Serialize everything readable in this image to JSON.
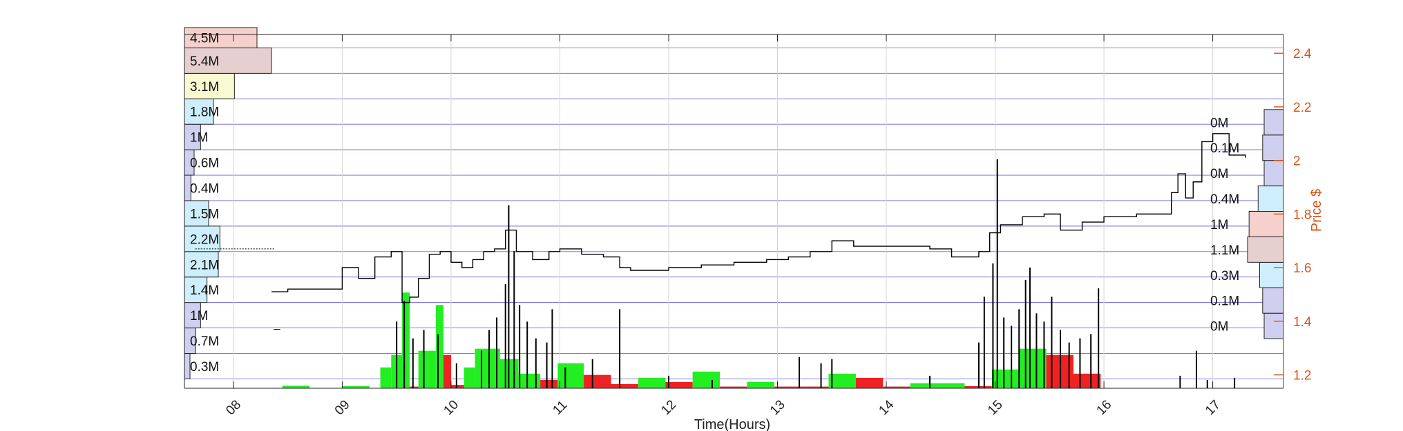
{
  "chart_data": {
    "type": "line",
    "title": "",
    "xlabel": "Time(Hours)",
    "ylabel": "Price $",
    "x_ticks": [
      "08",
      "09",
      "10",
      "11",
      "12",
      "13",
      "14",
      "15",
      "16",
      "17"
    ],
    "xlim": [
      7.55,
      17.65
    ],
    "y_ticks": [
      "1.2",
      "1.4",
      "1.6",
      "1.8",
      "2",
      "2.2",
      "2.4"
    ],
    "ylim": [
      1.15,
      2.47
    ],
    "price_axis_side": "right",
    "grid": true,
    "colors": {
      "price_axis": "#d95319",
      "grid": "#3333cc",
      "buy_volume": "#22ee22",
      "sell_volume": "#ee2222",
      "price_line": "#000000"
    },
    "price_series": {
      "name": "",
      "x": [
        8.35,
        8.5,
        8.8,
        9.0,
        9.15,
        9.3,
        9.45,
        9.55,
        9.62,
        9.7,
        9.8,
        9.9,
        10.0,
        10.1,
        10.2,
        10.3,
        10.4,
        10.5,
        10.6,
        10.75,
        10.9,
        11.0,
        11.2,
        11.4,
        11.55,
        11.65,
        11.8,
        12.0,
        12.3,
        12.6,
        12.9,
        13.1,
        13.3,
        13.5,
        13.7,
        13.9,
        14.2,
        14.4,
        14.6,
        14.75,
        14.85,
        14.95,
        15.05,
        15.25,
        15.45,
        15.6,
        15.8,
        16.0,
        16.3,
        16.55,
        16.62,
        16.68,
        16.75,
        16.82,
        16.9,
        17.0,
        17.15,
        17.3
      ],
      "y": [
        1.51,
        1.52,
        1.52,
        1.6,
        1.56,
        1.64,
        1.66,
        1.47,
        1.49,
        1.56,
        1.65,
        1.66,
        1.62,
        1.6,
        1.63,
        1.66,
        1.67,
        1.74,
        1.66,
        1.63,
        1.66,
        1.67,
        1.65,
        1.64,
        1.6,
        1.59,
        1.59,
        1.6,
        1.61,
        1.62,
        1.63,
        1.64,
        1.66,
        1.7,
        1.68,
        1.68,
        1.68,
        1.67,
        1.64,
        1.64,
        1.66,
        1.73,
        1.76,
        1.79,
        1.8,
        1.74,
        1.77,
        1.79,
        1.8,
        1.8,
        1.88,
        1.95,
        1.86,
        1.92,
        2.07,
        2.1,
        2.02,
        2.01
      ]
    },
    "volume_bars": [
      {
        "start": 8.45,
        "end": 8.7,
        "value": 0.06,
        "side": "buy"
      },
      {
        "start": 9.0,
        "end": 9.25,
        "value": 0.05,
        "side": "buy"
      },
      {
        "start": 9.35,
        "end": 9.45,
        "value": 0.5,
        "side": "buy"
      },
      {
        "start": 9.45,
        "end": 9.55,
        "value": 0.8,
        "side": "buy"
      },
      {
        "start": 9.55,
        "end": 9.62,
        "value": 2.3,
        "side": "buy"
      },
      {
        "start": 9.62,
        "end": 9.7,
        "value": 0.04,
        "side": "sell"
      },
      {
        "start": 9.7,
        "end": 9.78,
        "value": 0.9,
        "side": "buy"
      },
      {
        "start": 9.78,
        "end": 9.86,
        "value": 0.9,
        "side": "buy"
      },
      {
        "start": 9.86,
        "end": 9.93,
        "value": 2.0,
        "side": "buy"
      },
      {
        "start": 9.93,
        "end": 10.0,
        "value": 0.8,
        "side": "sell"
      },
      {
        "start": 10.0,
        "end": 10.12,
        "value": 0.08,
        "side": "sell"
      },
      {
        "start": 10.12,
        "end": 10.22,
        "value": 0.5,
        "side": "buy"
      },
      {
        "start": 10.22,
        "end": 10.45,
        "value": 0.95,
        "side": "buy"
      },
      {
        "start": 10.45,
        "end": 10.62,
        "value": 0.7,
        "side": "buy"
      },
      {
        "start": 10.62,
        "end": 10.82,
        "value": 0.35,
        "side": "buy"
      },
      {
        "start": 10.82,
        "end": 10.98,
        "value": 0.2,
        "side": "sell"
      },
      {
        "start": 10.98,
        "end": 11.22,
        "value": 0.6,
        "side": "buy"
      },
      {
        "start": 11.22,
        "end": 11.47,
        "value": 0.32,
        "side": "sell"
      },
      {
        "start": 11.47,
        "end": 11.72,
        "value": 0.1,
        "side": "sell"
      },
      {
        "start": 11.72,
        "end": 11.97,
        "value": 0.25,
        "side": "buy"
      },
      {
        "start": 11.97,
        "end": 12.22,
        "value": 0.15,
        "side": "sell"
      },
      {
        "start": 12.22,
        "end": 12.47,
        "value": 0.4,
        "side": "buy"
      },
      {
        "start": 12.47,
        "end": 12.72,
        "value": 0.04,
        "side": "sell"
      },
      {
        "start": 12.72,
        "end": 12.97,
        "value": 0.15,
        "side": "buy"
      },
      {
        "start": 12.97,
        "end": 13.47,
        "value": 0.04,
        "side": "sell"
      },
      {
        "start": 13.47,
        "end": 13.72,
        "value": 0.35,
        "side": "buy"
      },
      {
        "start": 13.72,
        "end": 13.97,
        "value": 0.25,
        "side": "sell"
      },
      {
        "start": 13.97,
        "end": 14.22,
        "value": 0.04,
        "side": "sell"
      },
      {
        "start": 14.22,
        "end": 14.72,
        "value": 0.12,
        "side": "buy"
      },
      {
        "start": 14.72,
        "end": 14.97,
        "value": 0.05,
        "side": "sell"
      },
      {
        "start": 14.97,
        "end": 15.22,
        "value": 0.45,
        "side": "buy"
      },
      {
        "start": 15.22,
        "end": 15.47,
        "value": 0.95,
        "side": "buy"
      },
      {
        "start": 15.47,
        "end": 15.72,
        "value": 0.8,
        "side": "sell"
      },
      {
        "start": 15.72,
        "end": 15.97,
        "value": 0.35,
        "side": "sell"
      }
    ],
    "volume_spikes": [
      {
        "x": 9.5,
        "value": 1.6
      },
      {
        "x": 9.57,
        "value": 2.1
      },
      {
        "x": 9.65,
        "value": 1.2
      },
      {
        "x": 9.75,
        "value": 1.4
      },
      {
        "x": 9.88,
        "value": 1.3
      },
      {
        "x": 10.05,
        "value": 0.6
      },
      {
        "x": 10.28,
        "value": 0.9
      },
      {
        "x": 10.35,
        "value": 1.4
      },
      {
        "x": 10.42,
        "value": 1.7
      },
      {
        "x": 10.5,
        "value": 2.5
      },
      {
        "x": 10.53,
        "value": 4.4
      },
      {
        "x": 10.58,
        "value": 3.3
      },
      {
        "x": 10.63,
        "value": 2.0
      },
      {
        "x": 10.7,
        "value": 1.6
      },
      {
        "x": 10.78,
        "value": 1.2
      },
      {
        "x": 10.88,
        "value": 1.1
      },
      {
        "x": 10.93,
        "value": 1.9
      },
      {
        "x": 11.05,
        "value": 0.5
      },
      {
        "x": 11.3,
        "value": 0.7
      },
      {
        "x": 11.55,
        "value": 1.9
      },
      {
        "x": 12.0,
        "value": 0.3
      },
      {
        "x": 12.4,
        "value": 0.2
      },
      {
        "x": 13.2,
        "value": 0.75
      },
      {
        "x": 13.4,
        "value": 0.6
      },
      {
        "x": 13.5,
        "value": 0.7
      },
      {
        "x": 14.4,
        "value": 0.3
      },
      {
        "x": 14.85,
        "value": 1.1
      },
      {
        "x": 14.9,
        "value": 2.2
      },
      {
        "x": 14.98,
        "value": 3.0
      },
      {
        "x": 15.02,
        "value": 5.5
      },
      {
        "x": 15.08,
        "value": 1.7
      },
      {
        "x": 15.15,
        "value": 1.5
      },
      {
        "x": 15.22,
        "value": 1.9
      },
      {
        "x": 15.28,
        "value": 2.6
      },
      {
        "x": 15.32,
        "value": 2.9
      },
      {
        "x": 15.38,
        "value": 1.8
      },
      {
        "x": 15.45,
        "value": 1.6
      },
      {
        "x": 15.52,
        "value": 2.2
      },
      {
        "x": 15.6,
        "value": 1.4
      },
      {
        "x": 15.68,
        "value": 1.1
      },
      {
        "x": 15.78,
        "value": 1.2
      },
      {
        "x": 15.88,
        "value": 1.3
      },
      {
        "x": 15.95,
        "value": 2.4
      },
      {
        "x": 16.7,
        "value": 0.3
      },
      {
        "x": 16.85,
        "value": 0.9
      },
      {
        "x": 16.95,
        "value": 0.2
      },
      {
        "x": 17.2,
        "value": 0.25
      }
    ],
    "volume_ylim": [
      0,
      8.5
    ],
    "volume_profile_left": {
      "price_step": 0.095,
      "bins": [
        {
          "price_low": 1.185,
          "label": "0.3M",
          "value": 0.3,
          "color": "#cfcff0"
        },
        {
          "price_low": 1.28,
          "label": "0.7M",
          "value": 0.7,
          "color": "#cfcff0"
        },
        {
          "price_low": 1.375,
          "label": "1M",
          "value": 1.0,
          "color": "#cfcff0"
        },
        {
          "price_low": 1.47,
          "label": "1.4M",
          "value": 1.4,
          "color": "#cdeefa"
        },
        {
          "price_low": 1.565,
          "label": "2.1M",
          "value": 2.1,
          "color": "#cdeefa"
        },
        {
          "price_low": 1.66,
          "label": "2.2M",
          "value": 2.2,
          "color": "#cdeefa"
        },
        {
          "price_low": 1.755,
          "label": "1.5M",
          "value": 1.5,
          "color": "#cdeefa"
        },
        {
          "price_low": 1.85,
          "label": "0.4M",
          "value": 0.4,
          "color": "#cfcff0"
        },
        {
          "price_low": 1.945,
          "label": "0.6M",
          "value": 0.6,
          "color": "#cfcff0"
        },
        {
          "price_low": 2.04,
          "label": "1M",
          "value": 1.0,
          "color": "#cfcff0"
        },
        {
          "price_low": 2.135,
          "label": "1.8M",
          "value": 1.8,
          "color": "#cdeefa"
        },
        {
          "price_low": 2.23,
          "label": "3.1M",
          "value": 3.1,
          "color": "#fafad2"
        },
        {
          "price_low": 2.325,
          "label": "5.4M",
          "value": 5.4,
          "color": "#e6cfcf"
        },
        {
          "price_low": 2.42,
          "label": "4.5M",
          "value": 4.5,
          "color": "#f6d0cc"
        }
      ]
    },
    "volume_profile_right": {
      "price_step": 0.095,
      "bins": [
        {
          "price_low": 1.335,
          "label": "0M",
          "value": 0.0,
          "color": "#cfcff0"
        },
        {
          "price_low": 1.43,
          "label": "0.1M",
          "value": 0.1,
          "color": "#cfcff0"
        },
        {
          "price_low": 1.525,
          "label": "0.3M",
          "value": 0.3,
          "color": "#cdeefa"
        },
        {
          "price_low": 1.62,
          "label": "1.1M",
          "value": 1.1,
          "color": "#e6cfcf"
        },
        {
          "price_low": 1.715,
          "label": "1M",
          "value": 1.0,
          "color": "#f6d0cc"
        },
        {
          "price_low": 1.81,
          "label": "0.4M",
          "value": 0.4,
          "color": "#cdeefa"
        },
        {
          "price_low": 1.905,
          "label": "0M",
          "value": 0.0,
          "color": "#cfcff0"
        },
        {
          "price_low": 2.0,
          "label": "0.1M",
          "value": 0.1,
          "color": "#cfcff0"
        },
        {
          "price_low": 2.095,
          "label": "0M",
          "value": 0.0,
          "color": "#cfcff0"
        }
      ]
    }
  }
}
